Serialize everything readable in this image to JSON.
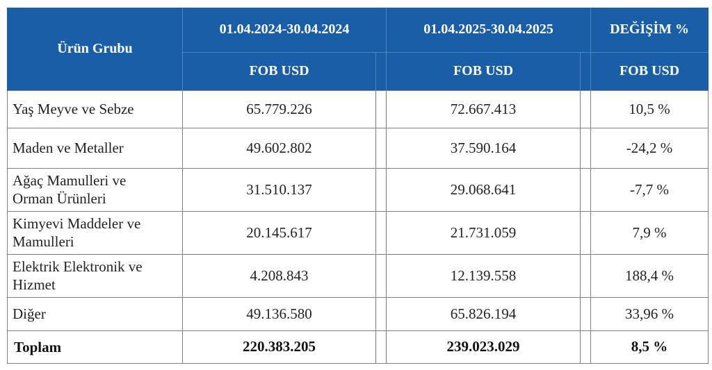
{
  "header": {
    "product_group": "Ürün Grubu",
    "period_2024": "01.04.2024-30.04.2024",
    "period_2025": "01.04.2025-30.04.2025",
    "change": "DEĞİŞİM %",
    "unit_2024": "FOB USD",
    "unit_2025": "FOB USD",
    "unit_change": "FOB USD"
  },
  "rows": [
    {
      "label": "Yaş Meyve ve Sebze",
      "v2024": "65.779.226",
      "v2025": "72.667.413",
      "change": "10,5 %"
    },
    {
      "label": "Maden ve Metaller",
      "v2024": "49.602.802",
      "v2025": "37.590.164",
      "change": "-24,2 %"
    },
    {
      "label_line1": "Ağaç Mamulleri ve",
      "label_line2": "Orman Ürünleri",
      "v2024": "31.510.137",
      "v2025": "29.068.641",
      "change": "-7,7 %"
    },
    {
      "label_line1": "Kimyevi Maddeler ve",
      "label_line2": "Mamulleri",
      "v2024": "20.145.617",
      "v2025": "21.731.059",
      "change": "7,9 %"
    },
    {
      "label_line1": "Elektrik Elektronik ve",
      "label_line2": "Hizmet",
      "v2024": "4.208.843",
      "v2025": "12.139.558",
      "change": "188,4 %"
    },
    {
      "label": "Diğer",
      "v2024": "49.136.580",
      "v2025": "65.826.194",
      "change": "33,96 %"
    }
  ],
  "total": {
    "label": "Toplam",
    "v2024": "220.383.205",
    "v2025": "239.023.029",
    "change": "8,5 %"
  },
  "colors": {
    "header_bg": "#1a5ea8",
    "header_text": "#ffffff",
    "border": "#7f7f7f"
  }
}
